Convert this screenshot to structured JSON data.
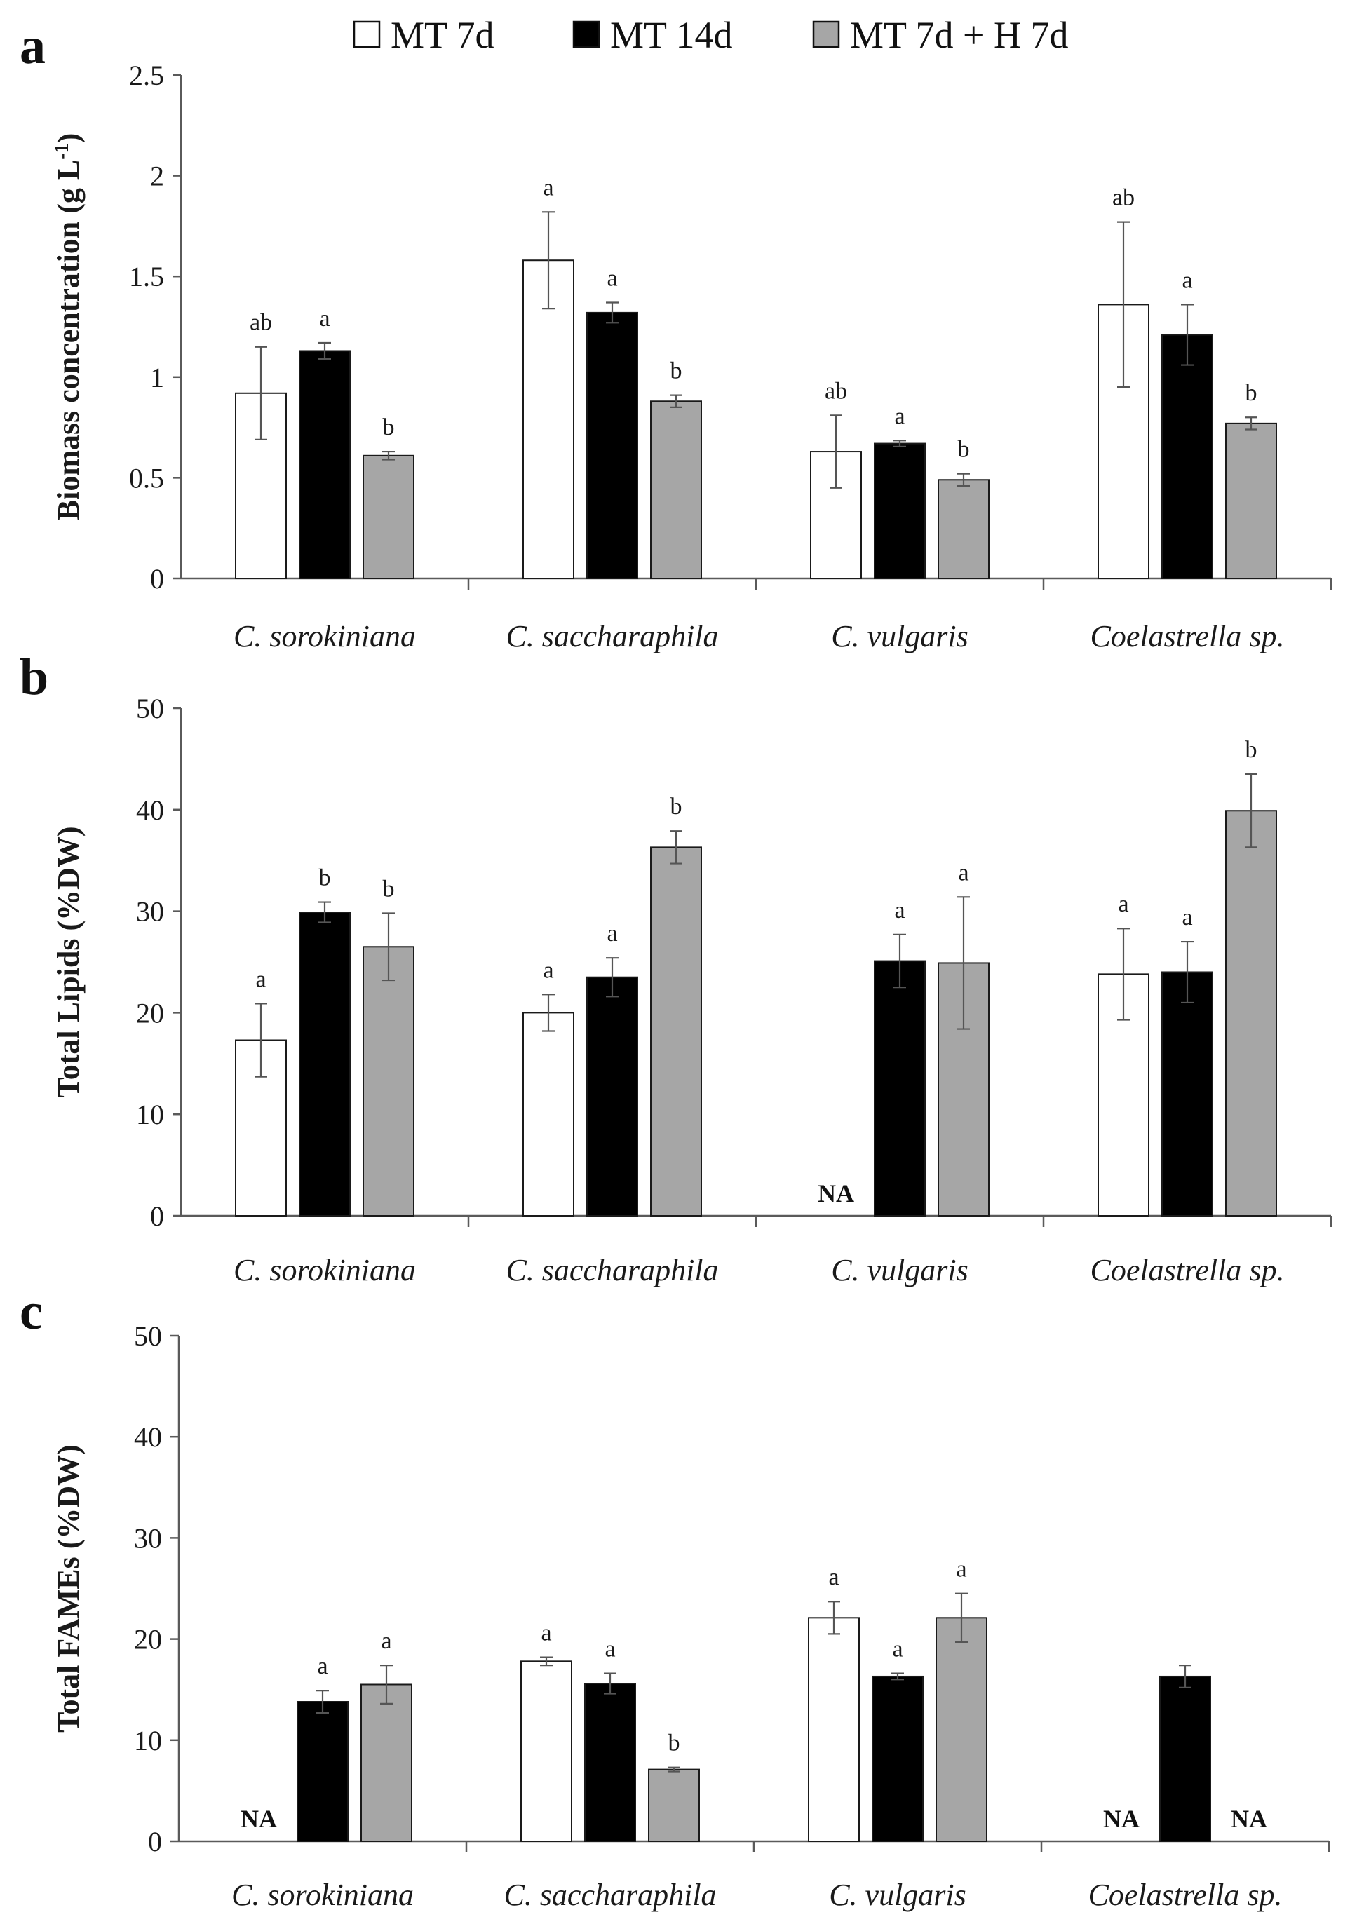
{
  "legend": [
    {
      "label": "MT 7d",
      "color": "#ffffff"
    },
    {
      "label": "MT 14d",
      "color": "#000000"
    },
    {
      "label": "MT 7d + H 7d",
      "color": "#a6a6a6"
    }
  ],
  "na_label": "NA",
  "chart_data": [
    {
      "type": "bar",
      "panel": "a",
      "ylabel": "Biomass concentration (g L",
      "ylabel_sup": "-1",
      "ylabel_close": ")",
      "ylim": [
        0,
        2.5
      ],
      "yticks": [
        "0",
        "0.5",
        "1",
        "1.5",
        "2",
        "2.5"
      ],
      "categories": [
        "C. sorokiniana",
        "C. saccharaphila",
        "C. vulgaris",
        "Coelastrella sp."
      ],
      "series": [
        {
          "name": "MT 7d",
          "values": [
            0.92,
            1.58,
            0.63,
            1.36
          ],
          "errors": [
            0.23,
            0.24,
            0.18,
            0.41
          ],
          "letters": [
            "ab",
            "a",
            "ab",
            "ab"
          ]
        },
        {
          "name": "MT 14d",
          "values": [
            1.13,
            1.32,
            0.67,
            1.21
          ],
          "errors": [
            0.04,
            0.05,
            0.015,
            0.15
          ],
          "letters": [
            "a",
            "a",
            "a",
            "a"
          ]
        },
        {
          "name": "MT 7d + H 7d",
          "values": [
            0.61,
            0.88,
            0.49,
            0.77
          ],
          "errors": [
            0.02,
            0.03,
            0.03,
            0.03
          ],
          "letters": [
            "b",
            "b",
            "b",
            "b"
          ]
        }
      ]
    },
    {
      "type": "bar",
      "panel": "b",
      "ylabel": "Total Lipids (%DW)",
      "ylim": [
        0,
        50
      ],
      "yticks": [
        "0",
        "10",
        "20",
        "30",
        "40",
        "50"
      ],
      "categories": [
        "C. sorokiniana",
        "C. saccharaphila",
        "C. vulgaris",
        "Coelastrella sp."
      ],
      "series": [
        {
          "name": "MT 7d",
          "values": [
            17.3,
            20.0,
            null,
            23.8
          ],
          "errors": [
            3.6,
            1.8,
            null,
            4.5
          ],
          "letters": [
            "a",
            "a",
            null,
            "a"
          ]
        },
        {
          "name": "MT 14d",
          "values": [
            29.9,
            23.5,
            25.1,
            24.0
          ],
          "errors": [
            1.0,
            1.9,
            2.6,
            3.0
          ],
          "letters": [
            "b",
            "a",
            "a",
            "a"
          ]
        },
        {
          "name": "MT 7d + H 7d",
          "values": [
            26.5,
            36.3,
            24.9,
            39.9
          ],
          "errors": [
            3.3,
            1.6,
            6.5,
            3.6
          ],
          "letters": [
            "b",
            "b",
            "a",
            "b"
          ]
        }
      ]
    },
    {
      "type": "bar",
      "panel": "c",
      "ylabel": "Total FAMEs (%DW)",
      "ylim": [
        0,
        50
      ],
      "yticks": [
        "0",
        "10",
        "20",
        "30",
        "40",
        "50"
      ],
      "categories": [
        "C. sorokiniana",
        "C. saccharaphila",
        "C. vulgaris",
        "Coelastrella sp."
      ],
      "series": [
        {
          "name": "MT 7d",
          "values": [
            null,
            17.8,
            22.1,
            null
          ],
          "errors": [
            null,
            0.4,
            1.6,
            null
          ],
          "letters": [
            null,
            "a",
            "a",
            null
          ]
        },
        {
          "name": "MT 14d",
          "values": [
            13.8,
            15.6,
            16.3,
            16.3
          ],
          "errors": [
            1.1,
            1.0,
            0.3,
            1.1
          ],
          "letters": [
            "a",
            "a",
            "a",
            null
          ]
        },
        {
          "name": "MT 7d + H 7d",
          "values": [
            15.5,
            7.1,
            22.1,
            null
          ],
          "errors": [
            1.9,
            0.2,
            2.4,
            null
          ],
          "letters": [
            "a",
            "b",
            "a",
            null
          ]
        }
      ]
    }
  ]
}
